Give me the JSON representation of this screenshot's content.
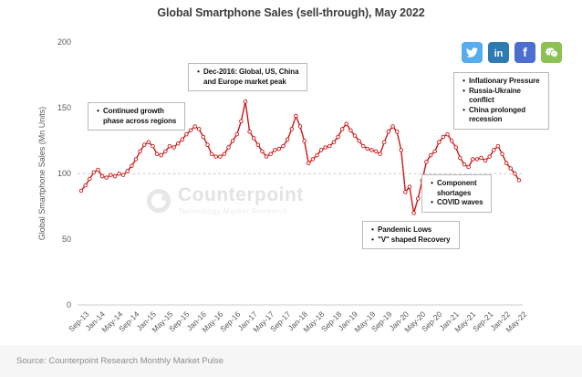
{
  "title": "Global Smartphone Sales (sell-through), May 2022",
  "source": "Source: Counterpoint Research Monthly Market Pulse",
  "watermark": {
    "name": "Counterpoint",
    "tagline": "Technology Market Research"
  },
  "social": {
    "items": [
      {
        "icon": "twitter-icon",
        "color": "#55acee"
      },
      {
        "icon": "linkedin-icon",
        "color": "#2e7bb2"
      },
      {
        "icon": "facebook-icon",
        "color": "#4a6fd0"
      },
      {
        "icon": "wechat-icon",
        "color": "#8dc153"
      }
    ]
  },
  "annotations": [
    {
      "id": "continued-growth",
      "bullets": [
        [
          "Continued growth",
          "phase across regions"
        ]
      ]
    },
    {
      "id": "dec-2016-peak",
      "bullets": [
        [
          "Dec-2016: Global, US, China",
          "and Europe market peak"
        ]
      ]
    },
    {
      "id": "inflation-2022",
      "bullets": [
        [
          "Inflationary Pressure"
        ],
        [
          "Russia-Ukraine",
          "conflict"
        ],
        [
          "China prolonged",
          "recession"
        ]
      ]
    },
    {
      "id": "component-shortages",
      "bullets": [
        [
          "Component",
          "shortages"
        ],
        [
          "COVID waves"
        ]
      ]
    },
    {
      "id": "pandemic-lows",
      "bullets": [
        [
          "Pandemic Lows"
        ],
        [
          "\"V\" shaped Recovery"
        ]
      ]
    }
  ],
  "chart_data": {
    "type": "line",
    "title": "Global Smartphone Sales (sell-through), May 2022",
    "xlabel": "",
    "ylabel": "Global Smartphone Sales (Mn Units)",
    "ylim": [
      0,
      200
    ],
    "yticks": [
      0,
      50,
      100,
      150,
      200
    ],
    "gridline_at": 100,
    "grid": "single dashed line at 100",
    "legend": "none",
    "x_frequency": "monthly",
    "x_start": "Sep-13",
    "x_end": "May-22",
    "x_tick_every": 4,
    "x_labels": [
      "Sep-13",
      "Jan-14",
      "May-14",
      "Sep-14",
      "Jan-15",
      "May-15",
      "Sep-15",
      "Jan-16",
      "May-16",
      "Sep-16",
      "Jan-17",
      "May-17",
      "Sep-17",
      "Jan-18",
      "May-18",
      "Sep-18",
      "Jan-19",
      "May-19",
      "Sep-19",
      "Jan-20",
      "May-20",
      "Sep-20",
      "Jan-21",
      "May-21",
      "Sep-21",
      "Jan-22",
      "May-22"
    ],
    "series": [
      {
        "name": "Global Smartphone Sales (Mn Units)",
        "color": "#cc1717",
        "values": [
          87,
          91,
          96,
          101,
          103,
          98,
          97,
          99,
          98,
          100,
          99,
          102,
          106,
          111,
          117,
          122,
          124,
          121,
          115,
          114,
          117,
          121,
          120,
          123,
          126,
          130,
          133,
          136,
          134,
          128,
          122,
          115,
          113,
          113,
          115,
          120,
          125,
          130,
          140,
          155,
          132,
          127,
          122,
          117,
          113,
          115,
          118,
          119,
          121,
          126,
          134,
          144,
          136,
          125,
          108,
          111,
          114,
          118,
          120,
          121,
          124,
          128,
          134,
          138,
          133,
          129,
          125,
          121,
          119,
          118,
          117,
          115,
          124,
          132,
          136,
          132,
          118,
          86,
          90,
          70,
          81,
          95,
          109,
          114,
          117,
          124,
          128,
          130,
          125,
          120,
          112,
          107,
          105,
          111,
          111,
          112,
          110,
          113,
          118,
          121,
          115,
          108,
          104,
          100,
          95
        ]
      }
    ]
  }
}
